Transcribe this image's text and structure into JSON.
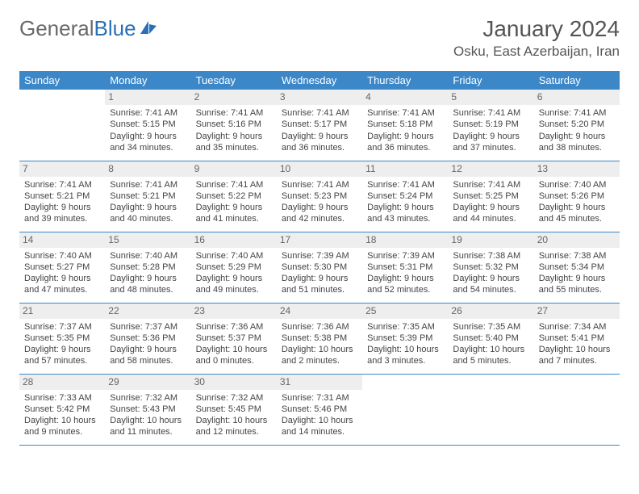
{
  "logo": {
    "text1": "General",
    "text2": "Blue"
  },
  "title": "January 2024",
  "location": "Osku, East Azerbaijan, Iran",
  "colors": {
    "header_bg": "#3b87c8",
    "header_fg": "#ffffff",
    "daynum_bg": "#eeeeee",
    "border": "#3b87c8",
    "logo_gray": "#696969",
    "logo_blue": "#2a70b8"
  },
  "weekdays": [
    "Sunday",
    "Monday",
    "Tuesday",
    "Wednesday",
    "Thursday",
    "Friday",
    "Saturday"
  ],
  "weeks": [
    [
      null,
      {
        "n": 1,
        "sunrise": "7:41 AM",
        "sunset": "5:15 PM",
        "daylight": "9 hours and 34 minutes."
      },
      {
        "n": 2,
        "sunrise": "7:41 AM",
        "sunset": "5:16 PM",
        "daylight": "9 hours and 35 minutes."
      },
      {
        "n": 3,
        "sunrise": "7:41 AM",
        "sunset": "5:17 PM",
        "daylight": "9 hours and 36 minutes."
      },
      {
        "n": 4,
        "sunrise": "7:41 AM",
        "sunset": "5:18 PM",
        "daylight": "9 hours and 36 minutes."
      },
      {
        "n": 5,
        "sunrise": "7:41 AM",
        "sunset": "5:19 PM",
        "daylight": "9 hours and 37 minutes."
      },
      {
        "n": 6,
        "sunrise": "7:41 AM",
        "sunset": "5:20 PM",
        "daylight": "9 hours and 38 minutes."
      }
    ],
    [
      {
        "n": 7,
        "sunrise": "7:41 AM",
        "sunset": "5:21 PM",
        "daylight": "9 hours and 39 minutes."
      },
      {
        "n": 8,
        "sunrise": "7:41 AM",
        "sunset": "5:21 PM",
        "daylight": "9 hours and 40 minutes."
      },
      {
        "n": 9,
        "sunrise": "7:41 AM",
        "sunset": "5:22 PM",
        "daylight": "9 hours and 41 minutes."
      },
      {
        "n": 10,
        "sunrise": "7:41 AM",
        "sunset": "5:23 PM",
        "daylight": "9 hours and 42 minutes."
      },
      {
        "n": 11,
        "sunrise": "7:41 AM",
        "sunset": "5:24 PM",
        "daylight": "9 hours and 43 minutes."
      },
      {
        "n": 12,
        "sunrise": "7:41 AM",
        "sunset": "5:25 PM",
        "daylight": "9 hours and 44 minutes."
      },
      {
        "n": 13,
        "sunrise": "7:40 AM",
        "sunset": "5:26 PM",
        "daylight": "9 hours and 45 minutes."
      }
    ],
    [
      {
        "n": 14,
        "sunrise": "7:40 AM",
        "sunset": "5:27 PM",
        "daylight": "9 hours and 47 minutes."
      },
      {
        "n": 15,
        "sunrise": "7:40 AM",
        "sunset": "5:28 PM",
        "daylight": "9 hours and 48 minutes."
      },
      {
        "n": 16,
        "sunrise": "7:40 AM",
        "sunset": "5:29 PM",
        "daylight": "9 hours and 49 minutes."
      },
      {
        "n": 17,
        "sunrise": "7:39 AM",
        "sunset": "5:30 PM",
        "daylight": "9 hours and 51 minutes."
      },
      {
        "n": 18,
        "sunrise": "7:39 AM",
        "sunset": "5:31 PM",
        "daylight": "9 hours and 52 minutes."
      },
      {
        "n": 19,
        "sunrise": "7:38 AM",
        "sunset": "5:32 PM",
        "daylight": "9 hours and 54 minutes."
      },
      {
        "n": 20,
        "sunrise": "7:38 AM",
        "sunset": "5:34 PM",
        "daylight": "9 hours and 55 minutes."
      }
    ],
    [
      {
        "n": 21,
        "sunrise": "7:37 AM",
        "sunset": "5:35 PM",
        "daylight": "9 hours and 57 minutes."
      },
      {
        "n": 22,
        "sunrise": "7:37 AM",
        "sunset": "5:36 PM",
        "daylight": "9 hours and 58 minutes."
      },
      {
        "n": 23,
        "sunrise": "7:36 AM",
        "sunset": "5:37 PM",
        "daylight": "10 hours and 0 minutes."
      },
      {
        "n": 24,
        "sunrise": "7:36 AM",
        "sunset": "5:38 PM",
        "daylight": "10 hours and 2 minutes."
      },
      {
        "n": 25,
        "sunrise": "7:35 AM",
        "sunset": "5:39 PM",
        "daylight": "10 hours and 3 minutes."
      },
      {
        "n": 26,
        "sunrise": "7:35 AM",
        "sunset": "5:40 PM",
        "daylight": "10 hours and 5 minutes."
      },
      {
        "n": 27,
        "sunrise": "7:34 AM",
        "sunset": "5:41 PM",
        "daylight": "10 hours and 7 minutes."
      }
    ],
    [
      {
        "n": 28,
        "sunrise": "7:33 AM",
        "sunset": "5:42 PM",
        "daylight": "10 hours and 9 minutes."
      },
      {
        "n": 29,
        "sunrise": "7:32 AM",
        "sunset": "5:43 PM",
        "daylight": "10 hours and 11 minutes."
      },
      {
        "n": 30,
        "sunrise": "7:32 AM",
        "sunset": "5:45 PM",
        "daylight": "10 hours and 12 minutes."
      },
      {
        "n": 31,
        "sunrise": "7:31 AM",
        "sunset": "5:46 PM",
        "daylight": "10 hours and 14 minutes."
      },
      null,
      null,
      null
    ]
  ]
}
